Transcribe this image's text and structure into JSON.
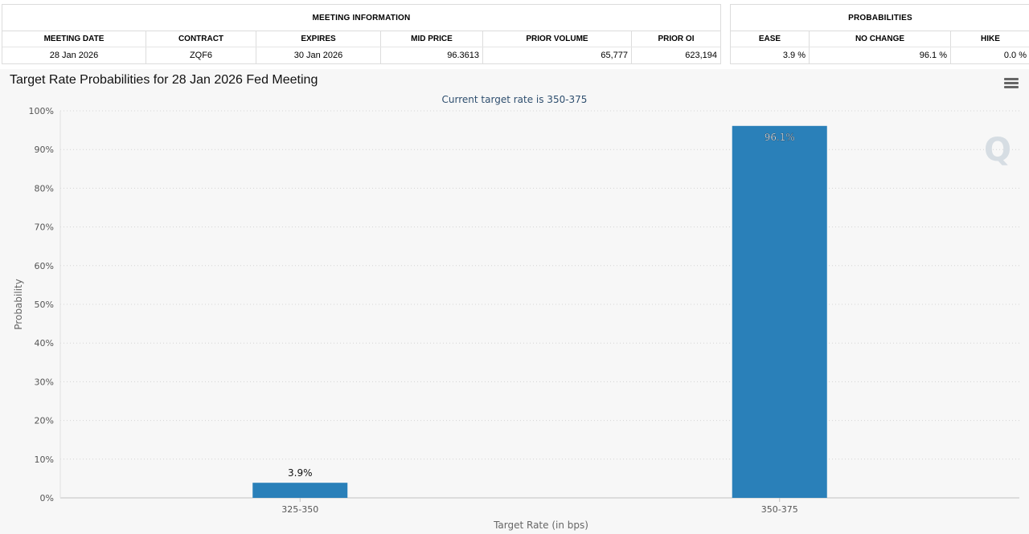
{
  "meeting_info": {
    "title": "MEETING INFORMATION",
    "columns": [
      "MEETING DATE",
      "CONTRACT",
      "EXPIRES",
      "MID PRICE",
      "PRIOR VOLUME",
      "PRIOR OI"
    ],
    "row": [
      "28 Jan 2026",
      "ZQF6",
      "30 Jan 2026",
      "96.3613",
      "65,777",
      "623,194"
    ]
  },
  "probabilities": {
    "title": "PROBABILITIES",
    "columns": [
      "EASE",
      "NO CHANGE",
      "HIKE"
    ],
    "row": [
      "3.9 %",
      "96.1 %",
      "0.0 %"
    ]
  },
  "chart_data": {
    "type": "bar",
    "title": "Target Rate Probabilities for 28 Jan 2026 Fed Meeting",
    "subtitle": "Current target rate is 350-375",
    "xlabel": "Target Rate (in bps)",
    "ylabel": "Probability",
    "categories": [
      "325-350",
      "350-375"
    ],
    "values": [
      3.9,
      96.1
    ],
    "data_labels": [
      "3.9%",
      "96.1%"
    ],
    "ylim": [
      0,
      100
    ],
    "yticks": [
      "0%",
      "10%",
      "20%",
      "30%",
      "40%",
      "50%",
      "60%",
      "70%",
      "80%",
      "90%",
      "100%"
    ],
    "grid": true,
    "bar_color": "#2a80b9",
    "watermark": "Q"
  }
}
